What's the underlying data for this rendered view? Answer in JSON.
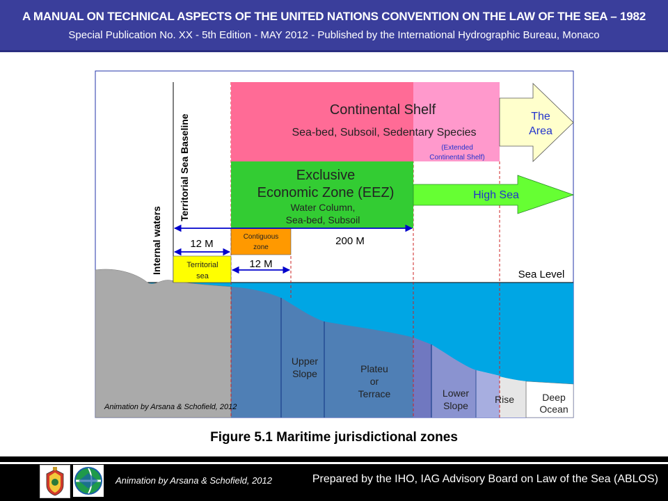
{
  "header": {
    "title": "A MANUAL ON TECHNICAL ASPECTS OF THE UNITED NATIONS CONVENTION ON THE LAW OF THE SEA – 1982",
    "subtitle": "Special Publication No. XX - 5th Edition - MAY 2012 - Published by the International Hydrographic Bureau,  Monaco"
  },
  "diagram": {
    "continental_shelf": "Continental Shelf",
    "continental_shelf_sub": "Sea-bed, Subsoil, Sedentary Species",
    "extended_shelf_1": "(Extended",
    "extended_shelf_2": "Continental Shelf)",
    "the_area_1": "The",
    "the_area_2": "Area",
    "eez_1": "Exclusive",
    "eez_2": "Economic Zone (EEZ)",
    "eez_sub_1": "Water Column,",
    "eez_sub_2": "Sea-bed, Subsoil",
    "high_sea": "High Sea",
    "baseline": "Territorial Sea Baseline",
    "internal_waters": "Internal waters",
    "dist_12m_a": "12 M",
    "contiguous_1": "Contiguous",
    "contiguous_2": "zone",
    "dist_200m": "200 M",
    "territorial_1": "Territorial",
    "territorial_2": "sea",
    "dist_12m_b": "12 M",
    "sea_level": "Sea Level",
    "upper_slope_1": "Upper",
    "upper_slope_2": "Slope",
    "plateau_1": "Plateu",
    "plateau_2": "or",
    "plateau_3": "Terrace",
    "lower_slope_1": "Lower",
    "lower_slope_2": "Slope",
    "rise": "Rise",
    "deep_ocean_1": "Deep",
    "deep_ocean_2": "Ocean",
    "credit": "Animation by Arsana & Schofield, 2012"
  },
  "caption": "Figure 5.1 Maritime jurisdictional zones",
  "footer": {
    "left": "Animation by Arsana & Schofield, 2012",
    "right": "Prepared by the IHO, IAG Advisory Board on Law of the Sea (ABLOS)"
  },
  "colors": {
    "header_bg": "#3a3e9b",
    "continental_shelf": "#ff6b96",
    "extended_shelf": "#ff99cc",
    "eez": "#33cc33",
    "high_sea_arrow": "#66ff33",
    "the_area_arrow": "#ffffcc",
    "contiguous_zone": "#ff9900",
    "territorial_sea": "#ffff00",
    "water": "#00a6e4",
    "land": "#aaaaaa"
  }
}
